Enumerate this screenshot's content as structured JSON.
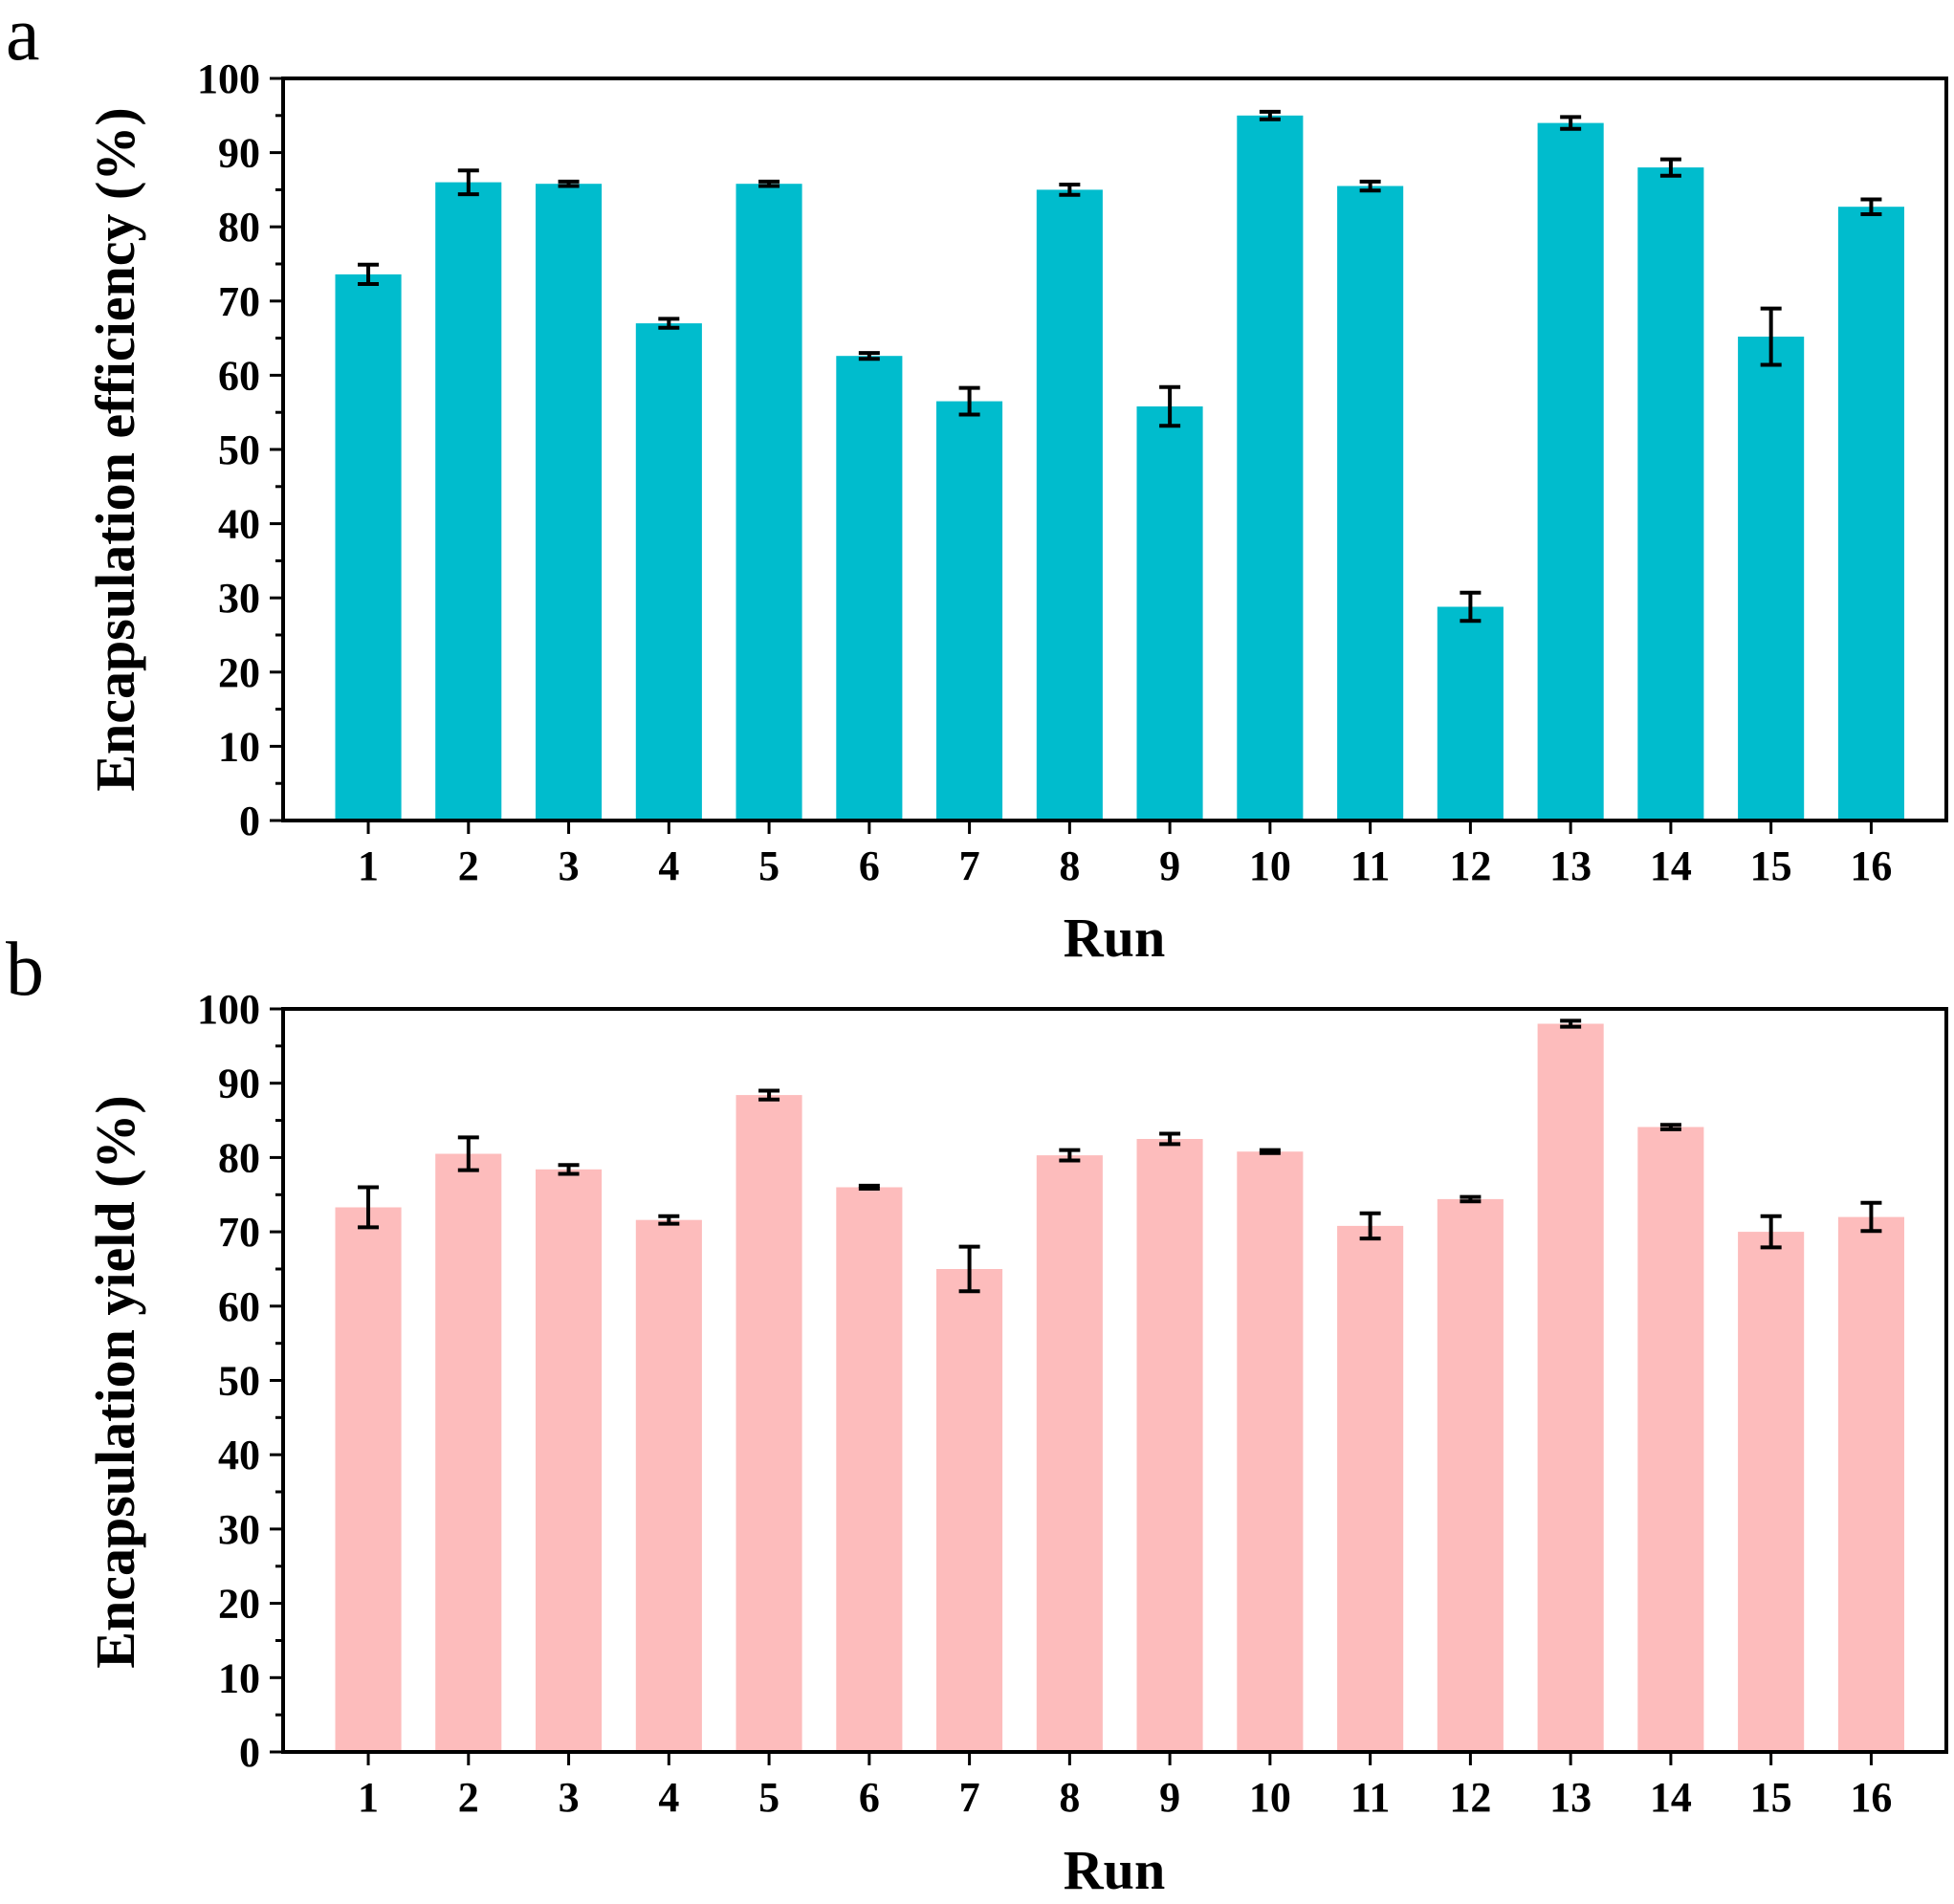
{
  "chart_data": [
    {
      "panel": "a",
      "type": "bar",
      "title": "",
      "xlabel": "Run",
      "ylabel": "Encapsulation efficiency (%)",
      "categories": [
        "1",
        "2",
        "3",
        "4",
        "5",
        "6",
        "7",
        "8",
        "9",
        "10",
        "11",
        "12",
        "13",
        "14",
        "15",
        "16"
      ],
      "values": [
        73.6,
        86.0,
        85.8,
        67.0,
        85.8,
        62.6,
        56.5,
        85.0,
        55.8,
        95.0,
        85.5,
        28.8,
        94.0,
        88.0,
        65.2,
        82.7
      ],
      "errors": [
        1.3,
        1.6,
        0.3,
        0.6,
        0.3,
        0.4,
        1.8,
        0.7,
        2.6,
        0.5,
        0.6,
        1.9,
        0.8,
        1.1,
        3.8,
        1.0
      ],
      "ylim": [
        0,
        100
      ],
      "yticks": [
        0,
        10,
        20,
        30,
        40,
        50,
        60,
        70,
        80,
        90,
        100
      ],
      "color": "#00bccd",
      "grid": false,
      "legend": "none"
    },
    {
      "panel": "b",
      "type": "bar",
      "title": "",
      "xlabel": "Run",
      "ylabel": "Encapsulation yield (%)",
      "categories": [
        "1",
        "2",
        "3",
        "4",
        "5",
        "6",
        "7",
        "8",
        "9",
        "10",
        "11",
        "12",
        "13",
        "14",
        "15",
        "16"
      ],
      "values": [
        73.3,
        80.5,
        78.4,
        71.6,
        88.4,
        76.0,
        65.0,
        80.3,
        82.5,
        80.8,
        70.8,
        74.4,
        98.0,
        84.1,
        70.0,
        72.0
      ],
      "errors": [
        2.7,
        2.2,
        0.6,
        0.5,
        0.6,
        0.2,
        3.0,
        0.7,
        0.7,
        0.2,
        1.7,
        0.3,
        0.4,
        0.3,
        2.1,
        1.9
      ],
      "ylim": [
        0,
        100
      ],
      "yticks": [
        0,
        10,
        20,
        30,
        40,
        50,
        60,
        70,
        80,
        90,
        100
      ],
      "color": "#fdbcbc",
      "grid": false,
      "legend": "none"
    }
  ]
}
